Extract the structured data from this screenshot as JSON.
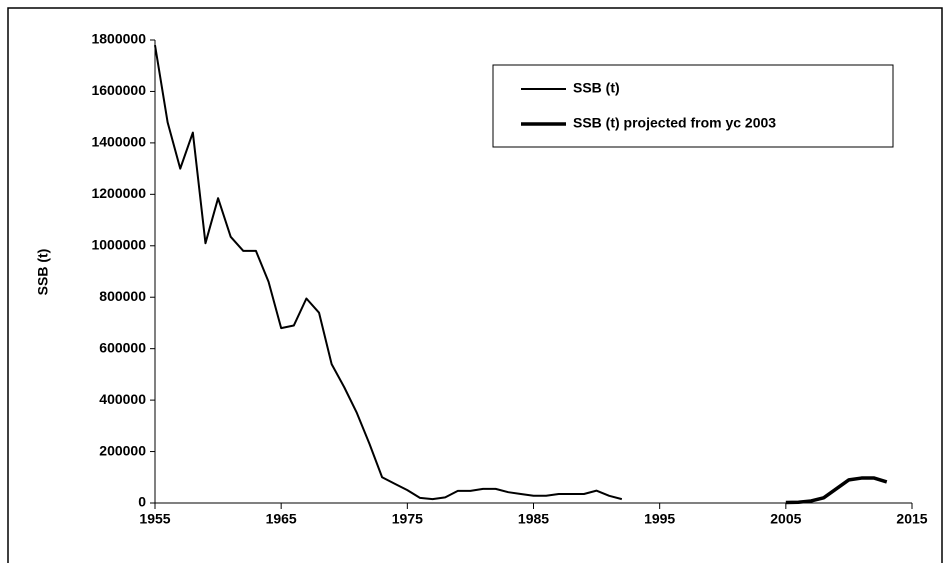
{
  "chart_data": {
    "type": "line",
    "ylabel": "SSB (t)",
    "xlim": [
      1955,
      2015
    ],
    "xticks": [
      1955,
      1965,
      1975,
      1985,
      1995,
      2005,
      2015
    ],
    "ylim": [
      0,
      1800000
    ],
    "yticks": [
      0,
      200000,
      400000,
      600000,
      800000,
      1000000,
      1200000,
      1400000,
      1600000,
      1800000
    ],
    "legend": "upper right",
    "series": [
      {
        "name": "SSB (t)",
        "color": "#000000",
        "line_width": 2,
        "x": [
          1955,
          1956,
          1957,
          1958,
          1959,
          1960,
          1961,
          1962,
          1963,
          1964,
          1965,
          1966,
          1967,
          1968,
          1969,
          1970,
          1971,
          1972,
          1973,
          1974,
          1975,
          1976,
          1977,
          1978,
          1979,
          1980,
          1981,
          1982,
          1983,
          1984,
          1985,
          1986,
          1987,
          1988,
          1989,
          1990,
          1991,
          1992
        ],
        "values": [
          1780000,
          1480000,
          1300000,
          1440000,
          1010000,
          1185000,
          1035000,
          980000,
          980000,
          860000,
          680000,
          690000,
          795000,
          740000,
          540000,
          450000,
          350000,
          230000,
          100000,
          75000,
          50000,
          20000,
          15000,
          22000,
          47000,
          47000,
          55000,
          55000,
          42000,
          35000,
          28000,
          28000,
          35000,
          35000,
          35000,
          48000,
          28000,
          15000
        ]
      },
      {
        "name": "SSB (t) projected from yc 2003",
        "color": "#000000",
        "line_width": 3.5,
        "x": [
          2005,
          2006,
          2007,
          2008,
          2009,
          2010,
          2011,
          2012,
          2013
        ],
        "values": [
          2000,
          3000,
          8000,
          20000,
          55000,
          90000,
          97000,
          97000,
          82000
        ]
      }
    ]
  }
}
